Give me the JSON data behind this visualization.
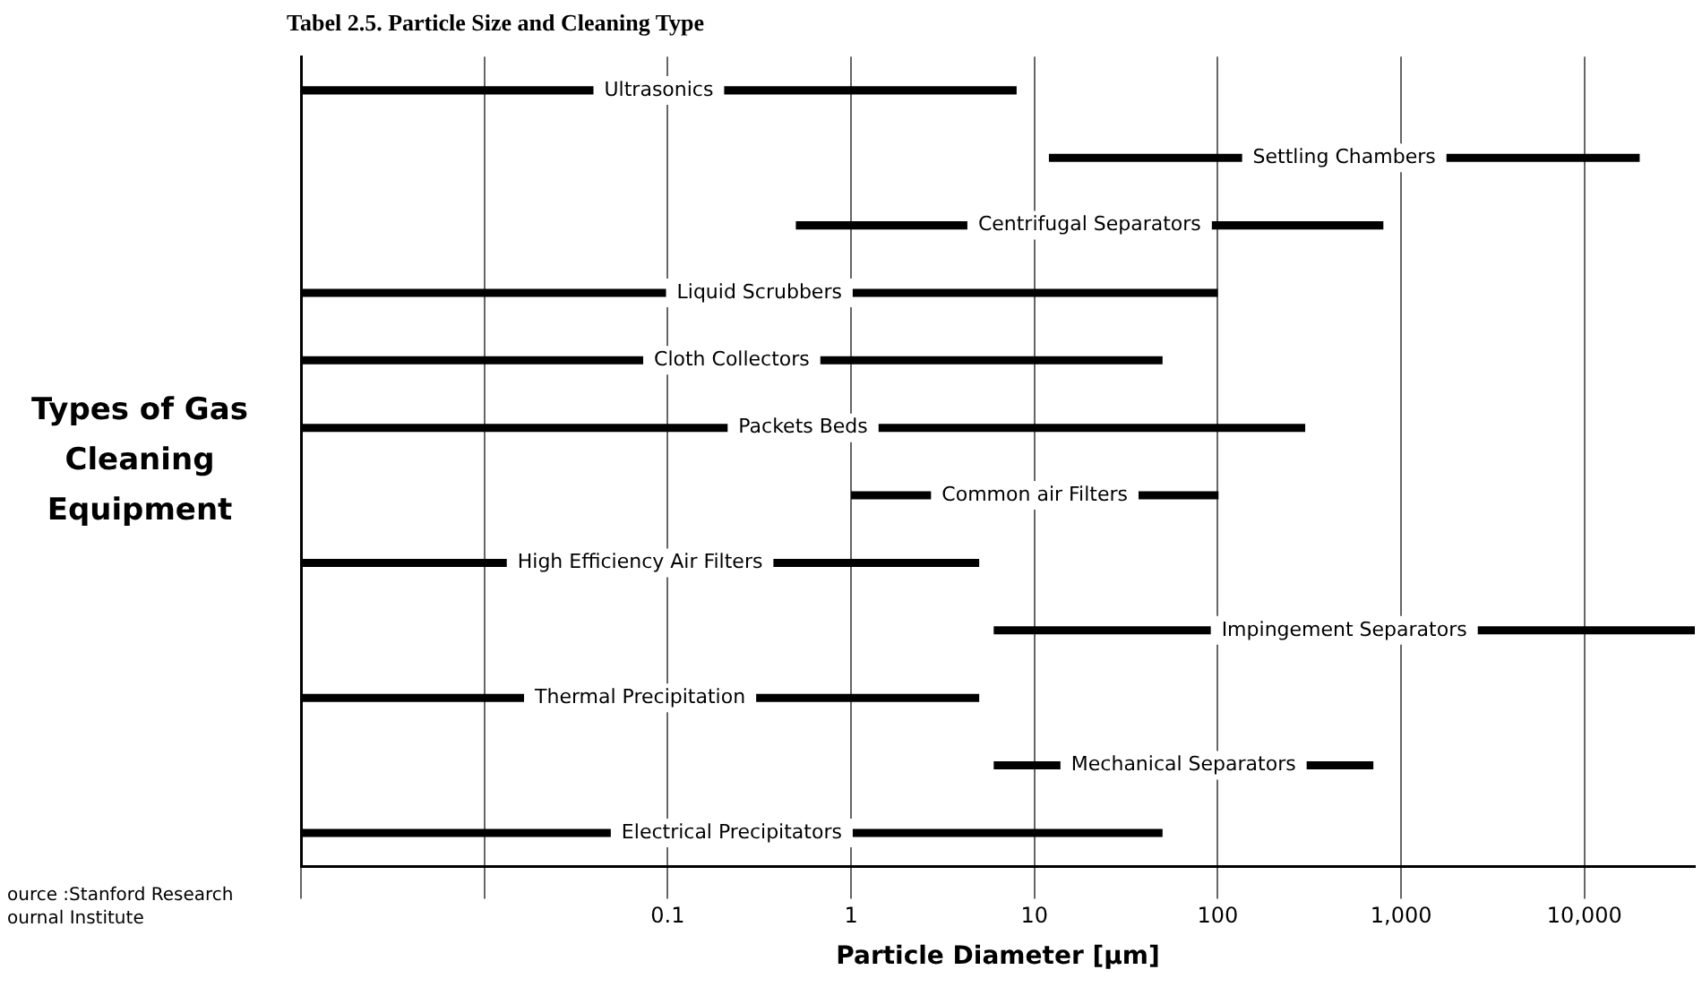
{
  "chart_data": {
    "type": "bar",
    "orientation": "horizontal",
    "title": "Tabel 2.5. Particle Size and Cleaning Type",
    "xlabel": "Particle Diameter [µm]",
    "ylabel": "Types of Gas Cleaning Equipment",
    "categories": [
      "Ultrasonics",
      "Settling Chambers",
      "Centrifugal Separators",
      "Liquid Scrubbers",
      "Cloth Collectors",
      "Packets Beds",
      "Common air Filters",
      "High Efficiency Air Filters",
      "Impingement Separators",
      "Thermal Precipitation",
      "Mechanical Separators",
      "Electrical Precipitators"
    ],
    "base": [
      0.001,
      12,
      0.5,
      0.001,
      0.001,
      0.001,
      1,
      0.001,
      6,
      0.001,
      6,
      0.001
    ],
    "values": [
      8,
      20000,
      800,
      100,
      50,
      300,
      100,
      5,
      40000,
      5,
      700,
      50
    ],
    "color": "#000000",
    "log": "x",
    "xlim": [
      0.001,
      40000
    ],
    "xticks": [
      {
        "value": 0.001,
        "label": null
      },
      {
        "value": 0.01,
        "label": null
      },
      0.1,
      1,
      10,
      100,
      {
        "value": 1000,
        "label": "1,000"
      },
      {
        "value": 10000,
        "label": "10,000"
      }
    ],
    "grid": "x",
    "tick_labels": "x",
    "legend": false,
    "annotations": [
      "ource :Stanford Research ournal Institute"
    ]
  }
}
